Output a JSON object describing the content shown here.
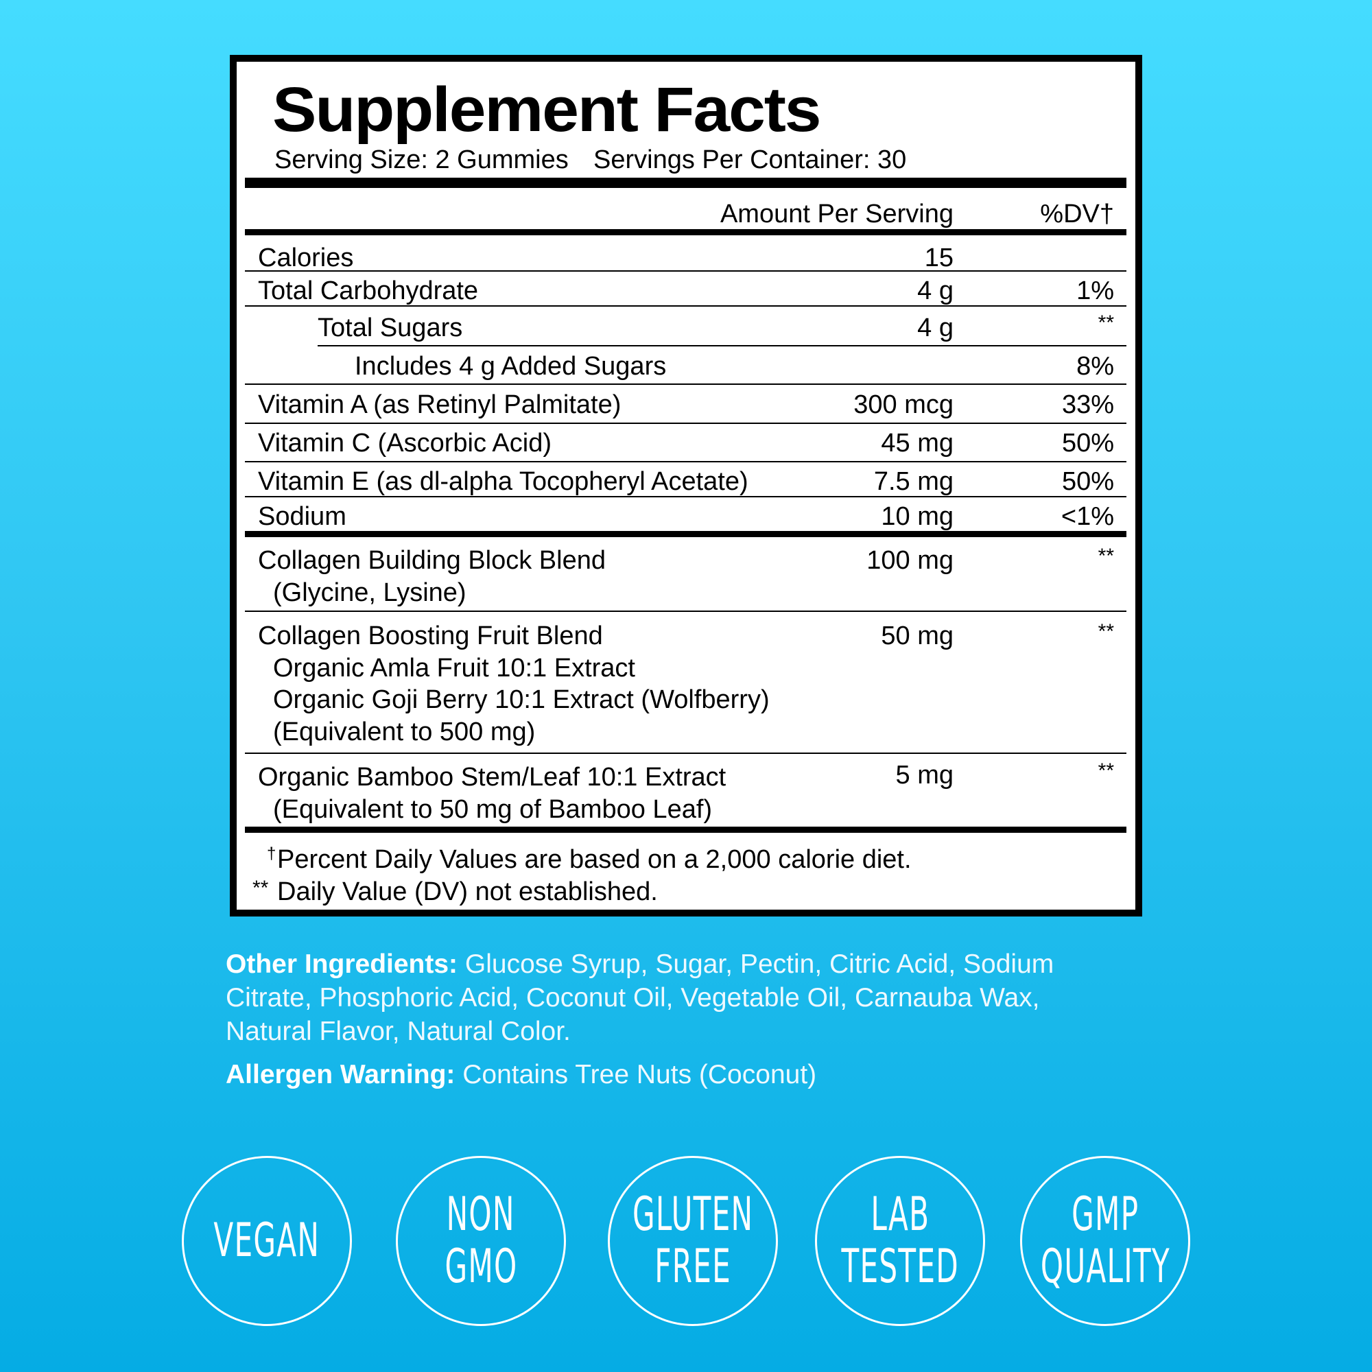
{
  "title": "Supplement Facts",
  "serving_size": "Serving Size: 2 Gummies",
  "servings_per_container": "Servings Per Container: 30",
  "header": {
    "amount": "Amount Per Serving",
    "dv": "%DV†"
  },
  "rows": [
    {
      "label": "Calories",
      "amount": "15",
      "dv": ""
    },
    {
      "label": "Total Carbohydrate",
      "amount": "4 g",
      "dv": "1%"
    },
    {
      "label": "Total Sugars",
      "amount": "4 g",
      "dv": "**"
    },
    {
      "label": "Includes 4 g Added Sugars",
      "amount": "",
      "dv": "8%"
    },
    {
      "label": "Vitamin A (as Retinyl Palmitate)",
      "amount": "300 mcg",
      "dv": "33%"
    },
    {
      "label": "Vitamin C (Ascorbic Acid)",
      "amount": "45 mg",
      "dv": "50%"
    },
    {
      "label": "Vitamin E (as dl-alpha Tocopheryl Acetate)",
      "amount": "7.5 mg",
      "dv": "50%"
    },
    {
      "label": "Sodium",
      "amount": "10 mg",
      "dv": "<1%"
    },
    {
      "label": "Collagen Building Block Blend",
      "sub": [
        "(Glycine, Lysine)"
      ],
      "amount": "100 mg",
      "dv": "**"
    },
    {
      "label": "Collagen Boosting Fruit Blend",
      "sub": [
        "Organic Amla Fruit 10:1 Extract",
        "Organic Goji Berry 10:1 Extract (Wolfberry)",
        "(Equivalent to 500 mg)"
      ],
      "amount": "50 mg",
      "dv": "**"
    },
    {
      "label": "Organic Bamboo Stem/Leaf 10:1 Extract",
      "sub": [
        "(Equivalent to 50 mg of Bamboo Leaf)"
      ],
      "amount": "5 mg",
      "dv": "**"
    }
  ],
  "footnotes": {
    "dagger": "†",
    "dagger_text": "Percent Daily Values are based on a 2,000 calorie diet.",
    "stars": "**",
    "stars_text": "Daily Value (DV) not established."
  },
  "other_ingredients": {
    "label": "Other Ingredients:",
    "lines": [
      "Glucose Syrup, Sugar, Pectin, Citric Acid, Sodium",
      "Citrate, Phosphoric Acid, Coconut Oil, Vegetable Oil, Carnauba Wax,",
      "Natural Flavor, Natural Color."
    ]
  },
  "allergen": {
    "label": "Allergen Warning:",
    "text": "Contains Tree Nuts (Coconut)"
  },
  "badges": [
    [
      "VEGAN"
    ],
    [
      "NON",
      "GMO"
    ],
    [
      "GLUTEN",
      "FREE"
    ],
    [
      "LAB",
      "TESTED"
    ],
    [
      "GMP",
      "QUALITY"
    ]
  ],
  "colors": {
    "background_top": "#45dcff",
    "background_bottom": "#05ace4",
    "panel": "#ffffff"
  }
}
